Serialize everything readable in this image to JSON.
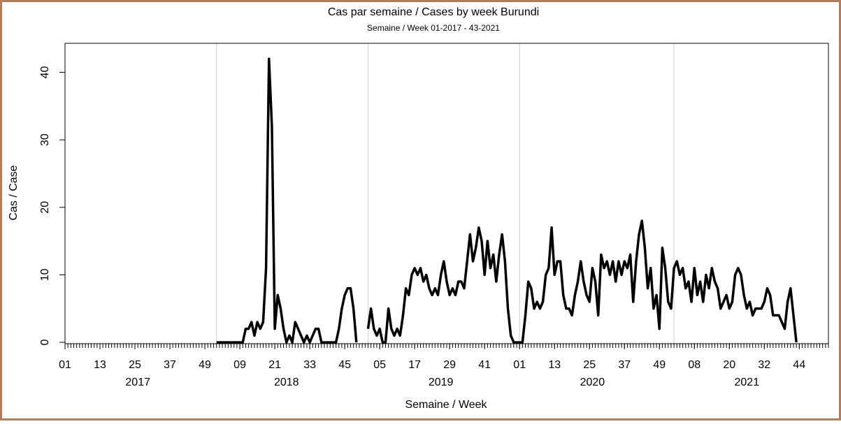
{
  "chart_data": {
    "type": "line",
    "title": "Cas par semaine / Cases by week Burundi",
    "subtitle": "Semaine / Week 01-2017 - 43-2021",
    "xlabel": "Semaine / Week",
    "ylabel": "Cas / Case",
    "xlim": [
      0,
      262
    ],
    "ylim": [
      -0.2,
      44.3
    ],
    "yticks": [
      0,
      10,
      20,
      30,
      40
    ],
    "xticks": [
      {
        "value": 0,
        "label": "01"
      },
      {
        "value": 12,
        "label": "13"
      },
      {
        "value": 24,
        "label": "25"
      },
      {
        "value": 36,
        "label": "37"
      },
      {
        "value": 48,
        "label": "49"
      },
      {
        "value": 60,
        "label": "09"
      },
      {
        "value": 72,
        "label": "21"
      },
      {
        "value": 84,
        "label": "33"
      },
      {
        "value": 96,
        "label": "45"
      },
      {
        "value": 108,
        "label": "05"
      },
      {
        "value": 120,
        "label": "17"
      },
      {
        "value": 132,
        "label": "29"
      },
      {
        "value": 144,
        "label": "41"
      },
      {
        "value": 156,
        "label": "01"
      },
      {
        "value": 168,
        "label": "13"
      },
      {
        "value": 180,
        "label": "25"
      },
      {
        "value": 192,
        "label": "37"
      },
      {
        "value": 204,
        "label": "49"
      },
      {
        "value": 216,
        "label": "08"
      },
      {
        "value": 228,
        "label": "20"
      },
      {
        "value": 240,
        "label": "32"
      },
      {
        "value": 252,
        "label": "44"
      }
    ],
    "year_labels": [
      {
        "value": 25,
        "label": "2017"
      },
      {
        "value": 76,
        "label": "2018"
      },
      {
        "value": 129,
        "label": "2019"
      },
      {
        "value": 181,
        "label": "2020"
      },
      {
        "value": 234,
        "label": "2021"
      }
    ],
    "xgrid": [
      52,
      104,
      156,
      209
    ],
    "color": "#000000",
    "x": [
      52,
      53,
      54,
      55,
      56,
      57,
      58,
      59,
      60,
      61,
      62,
      63,
      64,
      65,
      66,
      67,
      68,
      69,
      70,
      71,
      72,
      73,
      74,
      75,
      76,
      77,
      78,
      79,
      80,
      81,
      82,
      83,
      84,
      85,
      86,
      87,
      88,
      89,
      90,
      91,
      92,
      93,
      94,
      95,
      96,
      97,
      98,
      99,
      100,
      101,
      102,
      103,
      104,
      105,
      106,
      107,
      108,
      109,
      110,
      111,
      112,
      113,
      114,
      115,
      116,
      117,
      118,
      119,
      120,
      121,
      122,
      123,
      124,
      125,
      126,
      127,
      128,
      129,
      130,
      131,
      132,
      133,
      134,
      135,
      136,
      137,
      138,
      139,
      140,
      141,
      142,
      143,
      144,
      145,
      146,
      147,
      148,
      149,
      150,
      151,
      152,
      153,
      154,
      155,
      156,
      157,
      158,
      159,
      160,
      161,
      162,
      163,
      164,
      165,
      166,
      167,
      168,
      169,
      170,
      171,
      172,
      173,
      174,
      175,
      176,
      177,
      178,
      179,
      180,
      181,
      182,
      183,
      184,
      185,
      186,
      187,
      188,
      189,
      190,
      191,
      192,
      193,
      194,
      195,
      196,
      197,
      198,
      199,
      200,
      201,
      202,
      203,
      204,
      205,
      206,
      207,
      208,
      209,
      210,
      211,
      212,
      213,
      214,
      215,
      216,
      217,
      218,
      219,
      220,
      221,
      222,
      223,
      224,
      225,
      226,
      227,
      228,
      229,
      230,
      231,
      232,
      233,
      234,
      235,
      236,
      237,
      238,
      239,
      240,
      241,
      242,
      243,
      244,
      245,
      246,
      247,
      248,
      249,
      250,
      251
    ],
    "values": [
      0,
      0,
      0,
      0,
      0,
      0,
      0,
      0,
      0,
      0,
      2,
      2,
      3,
      1,
      3,
      2,
      3,
      11,
      42,
      32,
      2,
      7,
      5,
      2,
      0,
      1,
      0,
      3,
      2,
      1,
      0,
      1,
      0,
      1,
      2,
      2,
      0,
      0,
      0,
      0,
      0,
      0,
      2,
      5,
      7,
      8,
      8,
      5,
      0,
      null,
      null,
      null,
      2,
      5,
      2,
      1,
      2,
      0,
      0,
      5,
      2,
      1,
      2,
      1,
      4,
      8,
      7,
      10,
      11,
      10,
      11,
      9,
      10,
      8,
      7,
      8,
      7,
      10,
      12,
      9,
      7,
      8,
      7,
      9,
      9,
      8,
      12,
      16,
      12,
      14,
      17,
      15,
      10,
      15,
      11,
      13,
      9,
      13,
      16,
      12,
      5,
      1,
      0,
      0,
      0,
      0,
      4,
      9,
      8,
      5,
      6,
      5,
      6,
      10,
      11,
      17,
      10,
      12,
      12,
      7,
      5,
      5,
      4,
      7,
      9,
      12,
      9,
      7,
      6,
      11,
      9,
      4,
      13,
      11,
      12,
      10,
      12,
      9,
      12,
      10,
      12,
      11,
      13,
      6,
      12,
      16,
      18,
      14,
      8,
      11,
      5,
      7,
      2,
      14,
      11,
      6,
      5,
      11,
      12,
      10,
      11,
      8,
      9,
      6,
      11,
      7,
      9,
      6,
      10,
      8,
      11,
      9,
      8,
      5,
      6,
      7,
      5,
      6,
      10,
      11,
      10,
      7,
      5,
      6,
      4,
      5,
      5,
      5,
      6,
      8,
      7,
      4,
      4,
      4,
      3,
      2,
      6,
      8,
      4,
      0
    ]
  }
}
